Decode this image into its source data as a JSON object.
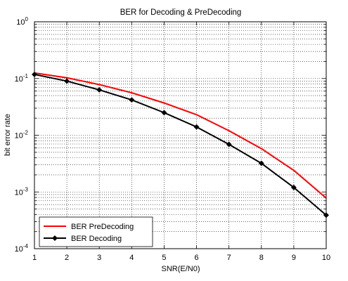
{
  "chart_data": {
    "type": "line",
    "title": "BER for Decoding & PreDecoding",
    "xlabel": "SNR(E/N0)",
    "ylabel": "bit error rate",
    "x": [
      1,
      2,
      3,
      4,
      5,
      6,
      7,
      8,
      9,
      10
    ],
    "xlim": [
      1,
      10
    ],
    "ylim": [
      0.0001,
      1
    ],
    "yscale": "log",
    "grid": true,
    "legend_position": "bottom-left",
    "x_ticks": [
      "1",
      "2",
      "3",
      "4",
      "5",
      "6",
      "7",
      "8",
      "9",
      "10"
    ],
    "y_ticks": [
      {
        "value": 0.0001,
        "base": "10",
        "exp": "-4"
      },
      {
        "value": 0.001,
        "base": "10",
        "exp": "-3"
      },
      {
        "value": 0.01,
        "base": "10",
        "exp": "-2"
      },
      {
        "value": 0.1,
        "base": "10",
        "exp": "-1"
      },
      {
        "value": 1,
        "base": "10",
        "exp": "0"
      }
    ],
    "series": [
      {
        "name": "BER PreDecoding",
        "color": "#ff0000",
        "marker": "none",
        "values": [
          0.125,
          0.103,
          0.078,
          0.056,
          0.037,
          0.023,
          0.012,
          0.0058,
          0.0024,
          0.00078
        ]
      },
      {
        "name": "BER Decoding",
        "color": "#000000",
        "marker": "diamond",
        "values": [
          0.118,
          0.09,
          0.063,
          0.042,
          0.025,
          0.014,
          0.0069,
          0.0032,
          0.0012,
          0.00039
        ]
      }
    ]
  }
}
